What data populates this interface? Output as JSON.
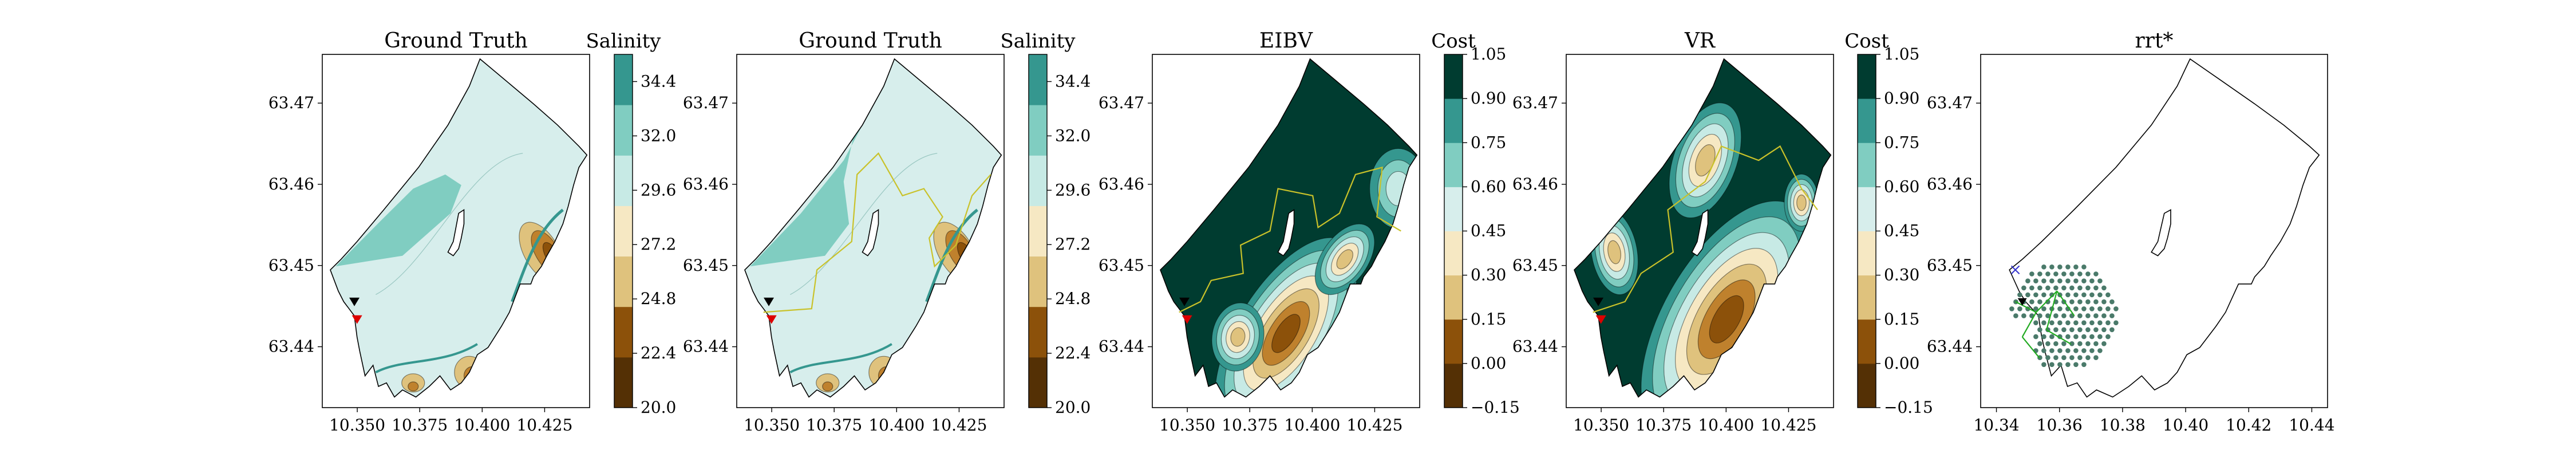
{
  "colors": {
    "brbg": [
      "#543005",
      "#8c510a",
      "#bf812d",
      "#dfc27d",
      "#f6e8c3",
      "#d7eeec",
      "#c7eae5",
      "#80cdc1",
      "#35978f",
      "#01665e",
      "#003c30"
    ],
    "path": "#c9c22a",
    "boundary": "#000000",
    "marker_red": "#dd0000",
    "marker_black": "#000000",
    "rrt_nodes": "#4a7a6a",
    "rrt_tree": "#22aa22"
  },
  "chart_data": [
    {
      "type": "heatmap",
      "title": "Ground Truth",
      "colorbar_title": "Salinity",
      "colorbar_ticks": [
        "20.0",
        "22.4",
        "24.8",
        "27.2",
        "29.6",
        "32.0",
        "34.4"
      ],
      "colorbar_range": [
        20.0,
        35.6
      ],
      "xticks": [
        "10.350",
        "10.375",
        "10.400",
        "10.425"
      ],
      "yticks": [
        "63.47",
        "63.46",
        "63.45",
        "63.44"
      ],
      "path_shown": false
    },
    {
      "type": "heatmap",
      "title": "Ground Truth",
      "colorbar_title": "Salinity",
      "colorbar_ticks": [
        "20.0",
        "22.4",
        "24.8",
        "27.2",
        "29.6",
        "32.0",
        "34.4"
      ],
      "colorbar_range": [
        20.0,
        35.6
      ],
      "xticks": [
        "10.350",
        "10.375",
        "10.400",
        "10.425"
      ],
      "yticks": [
        "63.47",
        "63.46",
        "63.45",
        "63.44"
      ],
      "path_shown": true
    },
    {
      "type": "heatmap",
      "title": "EIBV",
      "colorbar_title": "Cost",
      "colorbar_ticks": [
        "−0.15",
        "0.00",
        "0.15",
        "0.30",
        "0.45",
        "0.60",
        "0.75",
        "0.90",
        "1.05"
      ],
      "colorbar_range": [
        -0.15,
        1.05
      ],
      "xticks": [
        "10.350",
        "10.375",
        "10.400",
        "10.425"
      ],
      "yticks": [
        "63.47",
        "63.46",
        "63.45",
        "63.44"
      ],
      "path_shown": true
    },
    {
      "type": "heatmap",
      "title": "VR",
      "colorbar_title": "Cost",
      "colorbar_ticks": [
        "−0.15",
        "0.00",
        "0.15",
        "0.30",
        "0.45",
        "0.60",
        "0.75",
        "0.90",
        "1.05"
      ],
      "colorbar_range": [
        -0.15,
        1.05
      ],
      "xticks": [
        "10.350",
        "10.375",
        "10.400",
        "10.425"
      ],
      "yticks": [
        "63.47",
        "63.46",
        "63.45",
        "63.44"
      ],
      "path_shown": true
    },
    {
      "type": "scatter",
      "title": "rrt*",
      "xticks": [
        "10.34",
        "10.36",
        "10.38",
        "10.40",
        "10.42",
        "10.44"
      ],
      "yticks": [
        "63.47",
        "63.46",
        "63.45",
        "63.44"
      ]
    }
  ]
}
